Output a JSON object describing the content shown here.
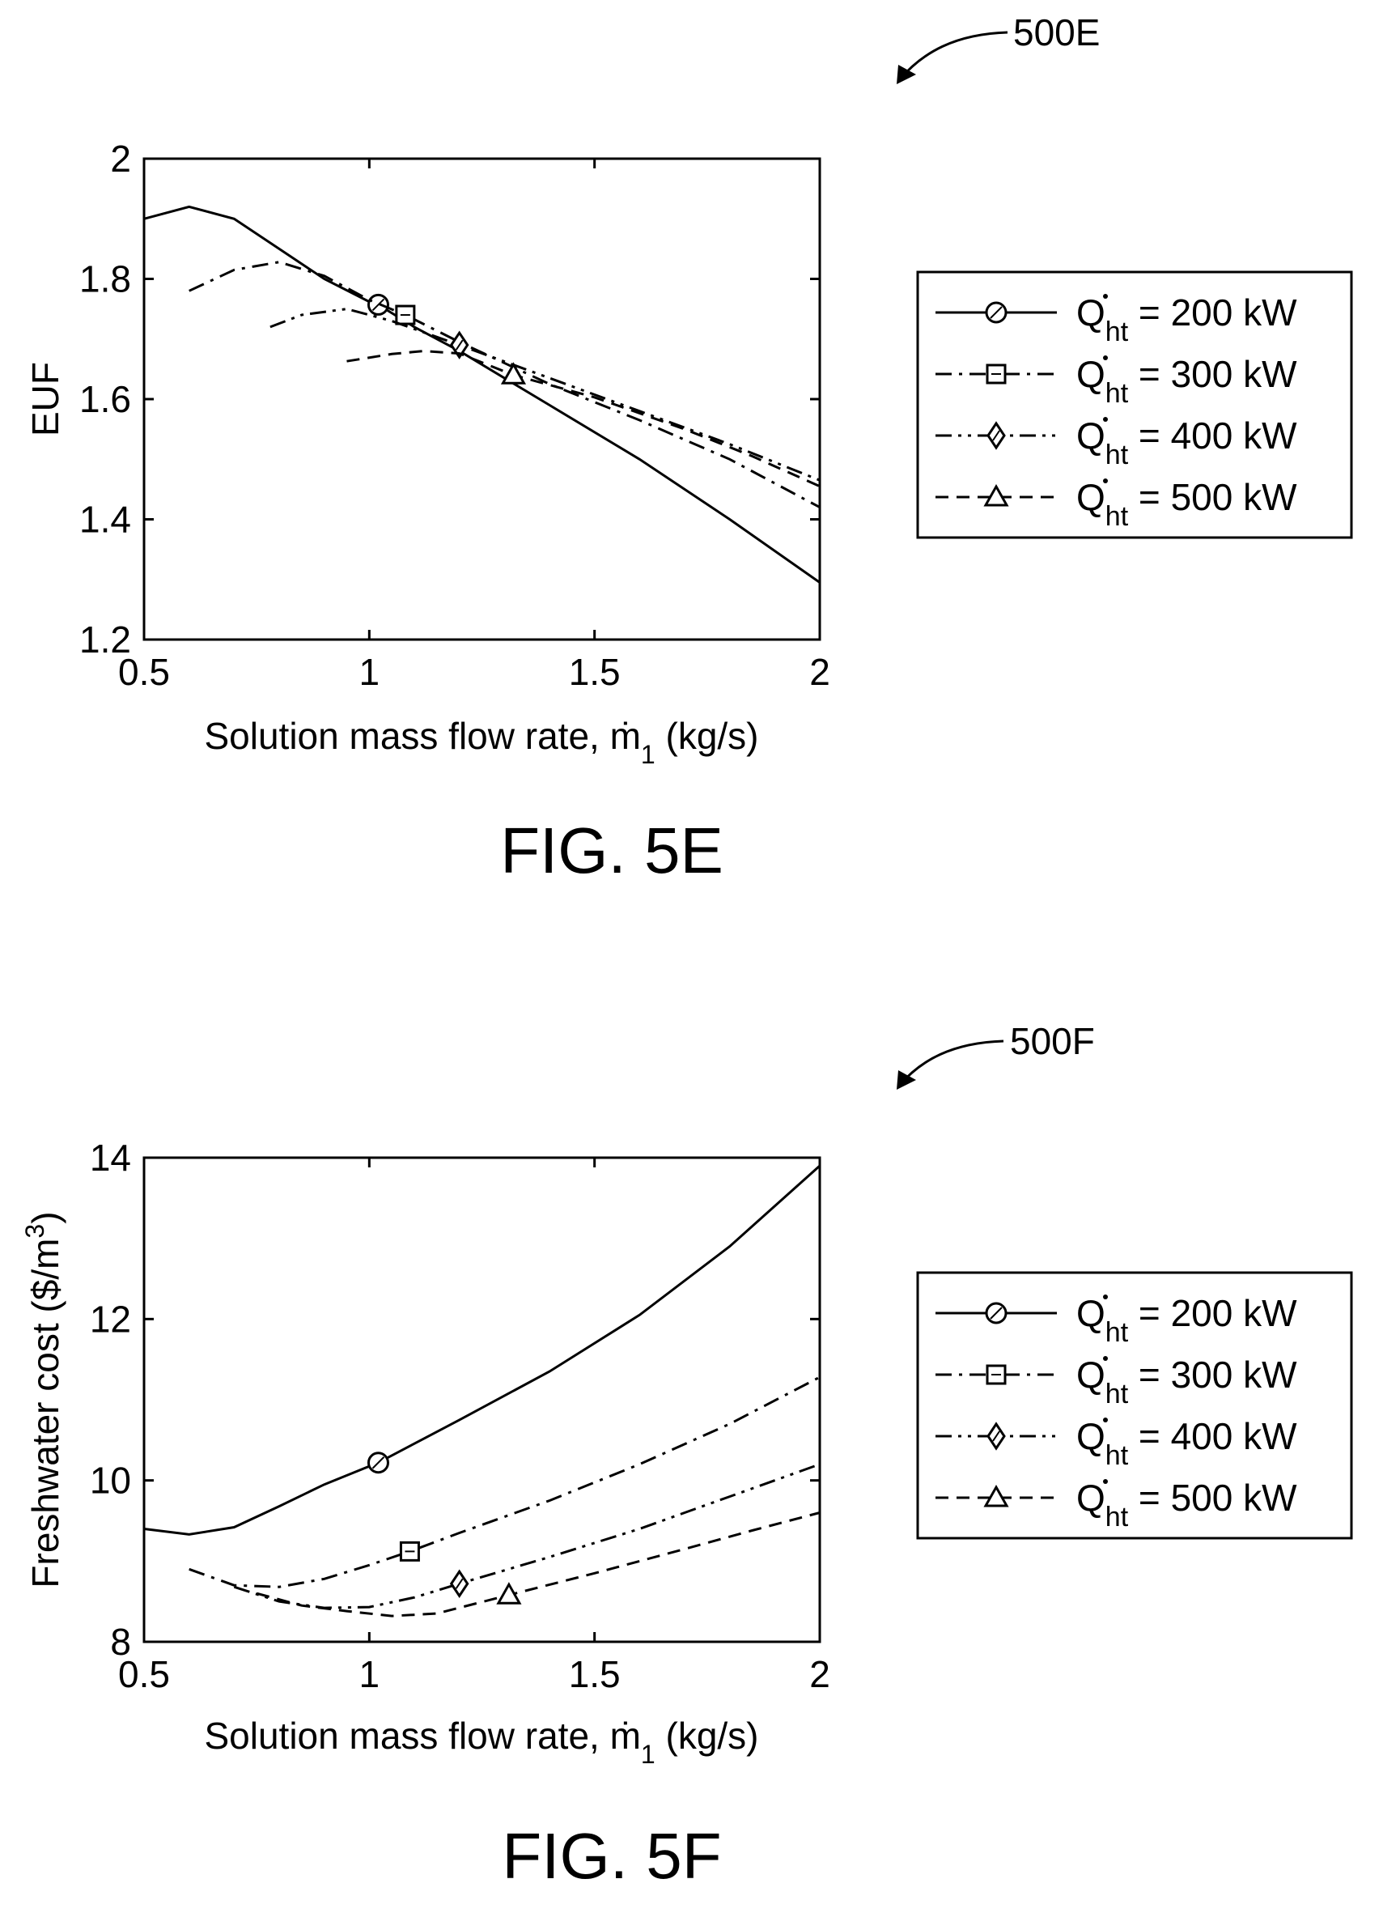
{
  "figures": [
    {
      "ref": "500E",
      "caption": "FIG. 5E",
      "chart_data": {
        "type": "line",
        "ylabel": "EUF",
        "xlabel_parts": [
          "Solution mass flow rate, ",
          "ṁ",
          "1",
          " (kg/s)"
        ],
        "xlim": [
          0.5,
          2
        ],
        "ylim": [
          1.2,
          2
        ],
        "xticks": [
          0.5,
          1,
          1.5,
          2
        ],
        "yticks": [
          1.2,
          1.4,
          1.6,
          1.8,
          2
        ],
        "grid": false,
        "legend_position": "right",
        "series": [
          {
            "legend_prefix": "Q",
            "legend_sub": "ht",
            "legend_value": " = 200 kW",
            "style": "solid",
            "marker": "circle",
            "x": [
              0.5,
              0.6,
              0.7,
              0.8,
              0.9,
              1.0,
              1.02,
              1.1,
              1.2,
              1.4,
              1.6,
              1.8,
              2.0
            ],
            "y": [
              1.9,
              1.92,
              1.9,
              1.85,
              1.8,
              1.762,
              1.757,
              1.72,
              1.68,
              1.59,
              1.5,
              1.4,
              1.295
            ],
            "marker_at": [
              1.02,
              1.757
            ]
          },
          {
            "legend_prefix": "Q",
            "legend_sub": "ht",
            "legend_value": " = 300 kW",
            "style": "dashdot",
            "marker": "square",
            "x": [
              0.6,
              0.7,
              0.8,
              0.9,
              1.0,
              1.08,
              1.2,
              1.4,
              1.6,
              1.8,
              2.0
            ],
            "y": [
              1.78,
              1.815,
              1.828,
              1.805,
              1.765,
              1.74,
              1.695,
              1.625,
              1.565,
              1.5,
              1.42
            ],
            "marker_at": [
              1.08,
              1.74
            ]
          },
          {
            "legend_prefix": "Q",
            "legend_sub": "ht",
            "legend_value": " = 400 kW",
            "style": "dashdotdot",
            "marker": "diamond",
            "x": [
              0.78,
              0.85,
              0.95,
              1.05,
              1.2,
              1.4,
              1.6,
              1.8,
              2.0
            ],
            "y": [
              1.72,
              1.74,
              1.75,
              1.73,
              1.69,
              1.635,
              1.58,
              1.525,
              1.465
            ],
            "marker_at": [
              1.2,
              1.69
            ]
          },
          {
            "legend_prefix": "Q",
            "legend_sub": "ht",
            "legend_value": " = 500 kW",
            "style": "dashed",
            "marker": "triangle",
            "x": [
              0.95,
              1.05,
              1.12,
              1.2,
              1.32,
              1.5,
              1.7,
              1.85,
              2.0
            ],
            "y": [
              1.663,
              1.675,
              1.68,
              1.676,
              1.64,
              1.603,
              1.55,
              1.505,
              1.455
            ],
            "marker_at": [
              1.32,
              1.64
            ]
          }
        ]
      }
    },
    {
      "ref": "500F",
      "caption": "FIG. 5F",
      "chart_data": {
        "type": "line",
        "ylabel_parts": [
          "Freshwater cost ($/m",
          "3",
          ")"
        ],
        "xlabel_parts": [
          "Solution mass flow rate, ",
          "ṁ",
          "1",
          " (kg/s)"
        ],
        "xlim": [
          0.5,
          2
        ],
        "ylim": [
          8,
          14
        ],
        "xticks": [
          0.5,
          1,
          1.5,
          2
        ],
        "yticks": [
          8,
          10,
          12,
          14
        ],
        "grid": false,
        "legend_position": "right",
        "series": [
          {
            "legend_prefix": "Q",
            "legend_sub": "ht",
            "legend_value": " = 200 kW",
            "style": "solid",
            "marker": "circle",
            "x": [
              0.5,
              0.6,
              0.7,
              0.8,
              0.9,
              1.02,
              1.2,
              1.4,
              1.6,
              1.8,
              2.0
            ],
            "y": [
              9.4,
              9.33,
              9.42,
              9.68,
              9.95,
              10.22,
              10.75,
              11.35,
              12.05,
              12.9,
              13.9
            ],
            "marker_at": [
              1.02,
              10.22
            ]
          },
          {
            "legend_prefix": "Q",
            "legend_sub": "ht",
            "legend_value": " = 300 kW",
            "style": "dashdot",
            "marker": "square",
            "x": [
              0.6,
              0.7,
              0.8,
              0.9,
              1.0,
              1.09,
              1.2,
              1.4,
              1.6,
              1.8,
              2.0
            ],
            "y": [
              8.9,
              8.7,
              8.68,
              8.78,
              8.95,
              9.12,
              9.35,
              9.75,
              10.2,
              10.7,
              11.28
            ],
            "marker_at": [
              1.09,
              9.12
            ]
          },
          {
            "legend_prefix": "Q",
            "legend_sub": "ht",
            "legend_value": " = 400 kW",
            "style": "dashdotdot",
            "marker": "diamond",
            "x": [
              0.7,
              0.8,
              0.9,
              1.0,
              1.1,
              1.2,
              1.4,
              1.6,
              1.8,
              2.0
            ],
            "y": [
              8.68,
              8.5,
              8.42,
              8.43,
              8.55,
              8.72,
              9.05,
              9.4,
              9.8,
              10.2
            ],
            "marker_at": [
              1.2,
              8.72
            ]
          },
          {
            "legend_prefix": "Q",
            "legend_sub": "ht",
            "legend_value": " = 500 kW",
            "style": "dashed",
            "marker": "triangle",
            "x": [
              0.75,
              0.85,
              0.95,
              1.05,
              1.15,
              1.31,
              1.5,
              1.7,
              1.85,
              2.0
            ],
            "y": [
              8.6,
              8.45,
              8.38,
              8.32,
              8.35,
              8.58,
              8.85,
              9.15,
              9.38,
              9.6
            ],
            "marker_at": [
              1.31,
              8.58
            ]
          }
        ]
      }
    }
  ]
}
